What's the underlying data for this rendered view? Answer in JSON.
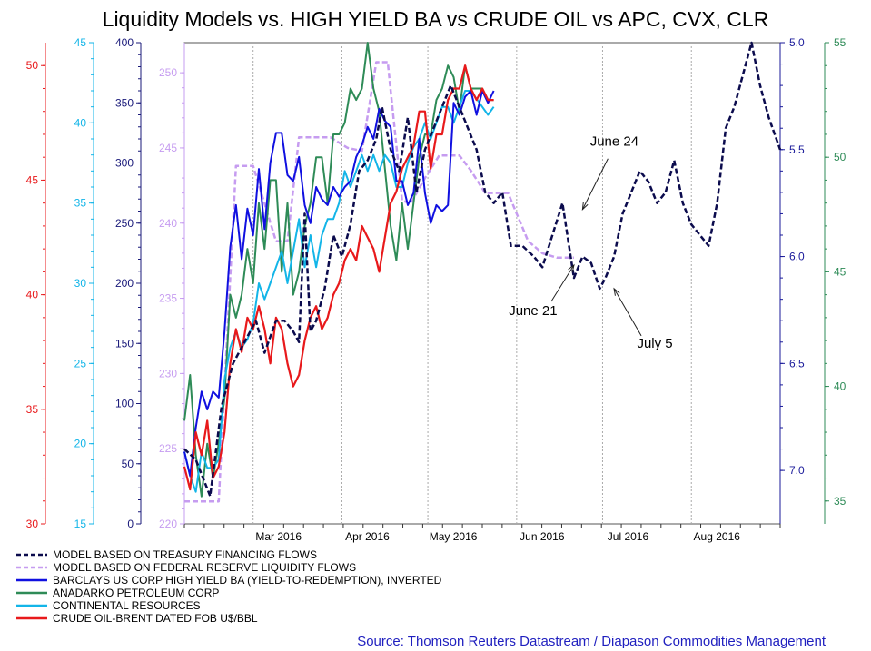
{
  "title": "Liquidity Models vs. HIGH YIELD BA vs CRUDE OIL vs APC, CVX, CLR",
  "source": "Source: Thomson Reuters Datastream / Diapason Commodities Management",
  "chart_data": {
    "type": "line",
    "x_range": [
      "2016-02-06",
      "2016-09-01"
    ],
    "x_ticks": [
      {
        "label": "Mar 2016",
        "date": "2016-03-01"
      },
      {
        "label": "Apr 2016",
        "date": "2016-04-01"
      },
      {
        "label": "May 2016",
        "date": "2016-05-01"
      },
      {
        "label": "Jun 2016",
        "date": "2016-06-01"
      },
      {
        "label": "Jul 2016",
        "date": "2016-07-01"
      },
      {
        "label": "Aug 2016",
        "date": "2016-08-01"
      }
    ],
    "axes": [
      {
        "id": "oil",
        "side": "left",
        "color": "#e8191b",
        "range": [
          30,
          51
        ],
        "ticks": [
          "30",
          "35",
          "40",
          "45",
          "50"
        ]
      },
      {
        "id": "clr",
        "side": "left",
        "color": "#13b5e8",
        "range": [
          15,
          45
        ],
        "ticks": [
          "15",
          "20",
          "25",
          "30",
          "35",
          "40",
          "45"
        ]
      },
      {
        "id": "hy",
        "side": "left",
        "color": "#1a1a7a",
        "range": [
          0,
          400
        ],
        "ticks": [
          "0",
          "50",
          "100",
          "150",
          "200",
          "250",
          "300",
          "350",
          "400"
        ]
      },
      {
        "id": "fed",
        "side": "left",
        "color": "#c69cf0",
        "range": [
          220,
          252
        ],
        "ticks": [
          "220",
          "225",
          "230",
          "235",
          "240",
          "245",
          "250"
        ]
      },
      {
        "id": "treasury",
        "side": "right",
        "color": "#1a1a9a",
        "range": [
          5.0,
          7.25
        ],
        "inverted": true,
        "ticks": [
          "5.0",
          "5.5",
          "6.0",
          "6.5",
          "7.0"
        ]
      },
      {
        "id": "apc",
        "side": "right",
        "color": "#2e8b57",
        "range": [
          34,
          55
        ],
        "ticks": [
          "35",
          "40",
          "45",
          "50",
          "55"
        ]
      }
    ],
    "series": [
      {
        "name": "MODEL BASED ON TREASURY FINANCING FLOWS",
        "axis": "treasury",
        "color": "#0b0b4d",
        "style": "dashed",
        "width": 2.5,
        "x": [
          "2016-02-06",
          "2016-02-10",
          "2016-02-15",
          "2016-02-19",
          "2016-02-23",
          "2016-02-27",
          "2016-03-02",
          "2016-03-05",
          "2016-03-09",
          "2016-03-12",
          "2016-03-15",
          "2016-03-17",
          "2016-03-19",
          "2016-03-21",
          "2016-03-23",
          "2016-03-26",
          "2016-03-29",
          "2016-04-01",
          "2016-04-04",
          "2016-04-07",
          "2016-04-10",
          "2016-04-13",
          "2016-04-15",
          "2016-04-18",
          "2016-04-21",
          "2016-04-24",
          "2016-04-27",
          "2016-04-30",
          "2016-05-03",
          "2016-05-06",
          "2016-05-09",
          "2016-05-12",
          "2016-05-15",
          "2016-05-18",
          "2016-05-21",
          "2016-05-24",
          "2016-05-27",
          "2016-05-30",
          "2016-06-03",
          "2016-06-07",
          "2016-06-10",
          "2016-06-13",
          "2016-06-17",
          "2016-06-21",
          "2016-06-24",
          "2016-06-27",
          "2016-06-30",
          "2016-07-02",
          "2016-07-05",
          "2016-07-08",
          "2016-07-11",
          "2016-07-14",
          "2016-07-17",
          "2016-07-20",
          "2016-07-23",
          "2016-07-26",
          "2016-07-29",
          "2016-08-01",
          "2016-08-04",
          "2016-08-07",
          "2016-08-10",
          "2016-08-13",
          "2016-08-16",
          "2016-08-19",
          "2016-08-22",
          "2016-08-25",
          "2016-08-28",
          "2016-09-01"
        ],
        "y": [
          6.9,
          6.95,
          7.12,
          6.7,
          6.5,
          6.4,
          6.3,
          6.45,
          6.3,
          6.3,
          6.35,
          6.4,
          5.8,
          6.35,
          6.3,
          6.15,
          5.9,
          6.0,
          5.85,
          5.6,
          5.55,
          5.45,
          5.3,
          5.5,
          5.6,
          5.35,
          5.7,
          5.5,
          5.4,
          5.3,
          5.2,
          5.3,
          5.4,
          5.5,
          5.7,
          5.75,
          5.7,
          5.95,
          5.95,
          6.0,
          6.05,
          5.92,
          5.75,
          6.1,
          6.0,
          6.03,
          6.15,
          6.1,
          6.0,
          5.8,
          5.7,
          5.6,
          5.65,
          5.75,
          5.7,
          5.55,
          5.75,
          5.85,
          5.9,
          5.95,
          5.75,
          5.4,
          5.3,
          5.15,
          5.0,
          5.2,
          5.35,
          5.5
        ]
      },
      {
        "name": "MODEL BASED ON FEDERAL RESERVE LIQUIDITY FLOWS",
        "axis": "fed",
        "color": "#c69cf0",
        "style": "dashed",
        "width": 2.5,
        "x": [
          "2016-02-06",
          "2016-02-18",
          "2016-02-24",
          "2016-03-01",
          "2016-03-09",
          "2016-03-13",
          "2016-03-17",
          "2016-03-22",
          "2016-03-28",
          "2016-04-03",
          "2016-04-08",
          "2016-04-13",
          "2016-04-17",
          "2016-04-22",
          "2016-04-25",
          "2016-04-30",
          "2016-05-05",
          "2016-05-12",
          "2016-05-16",
          "2016-05-21",
          "2016-05-25",
          "2016-05-29",
          "2016-06-05",
          "2016-06-10",
          "2016-06-15",
          "2016-06-21"
        ],
        "y": [
          221.5,
          221.5,
          243.8,
          243.8,
          238.8,
          238.8,
          245.7,
          245.7,
          245.7,
          245,
          244.8,
          250.7,
          250.7,
          241.5,
          241.3,
          243,
          244.5,
          244.5,
          243.5,
          242,
          242,
          242,
          238.8,
          238,
          237.7,
          237.7
        ]
      },
      {
        "name": "BARCLAYS US CORP HIGH YIELD BA (YIELD-TO-REDEMPTION), INVERTED",
        "axis": "hy",
        "color": "#1010e0",
        "style": "solid",
        "width": 2,
        "x": [
          "2016-02-06",
          "2016-02-08",
          "2016-02-10",
          "2016-02-12",
          "2016-02-14",
          "2016-02-16",
          "2016-02-18",
          "2016-02-20",
          "2016-02-22",
          "2016-02-24",
          "2016-02-26",
          "2016-02-28",
          "2016-03-01",
          "2016-03-03",
          "2016-03-05",
          "2016-03-07",
          "2016-03-09",
          "2016-03-11",
          "2016-03-13",
          "2016-03-15",
          "2016-03-17",
          "2016-03-19",
          "2016-03-21",
          "2016-03-23",
          "2016-03-25",
          "2016-03-27",
          "2016-03-29",
          "2016-03-31",
          "2016-04-02",
          "2016-04-04",
          "2016-04-06",
          "2016-04-08",
          "2016-04-10",
          "2016-04-12",
          "2016-04-14",
          "2016-04-16",
          "2016-04-18",
          "2016-04-20",
          "2016-04-22",
          "2016-04-24",
          "2016-04-26",
          "2016-04-28",
          "2016-04-30",
          "2016-05-02",
          "2016-05-04",
          "2016-05-06",
          "2016-05-08",
          "2016-05-10",
          "2016-05-12",
          "2016-05-14",
          "2016-05-16",
          "2016-05-18",
          "2016-05-20",
          "2016-05-22",
          "2016-05-24"
        ],
        "y": [
          60,
          40,
          80,
          110,
          95,
          110,
          105,
          160,
          230,
          265,
          220,
          262,
          240,
          295,
          245,
          300,
          325,
          325,
          290,
          285,
          305,
          265,
          250,
          280,
          270,
          265,
          280,
          272,
          280,
          285,
          305,
          315,
          330,
          320,
          345,
          335,
          330,
          285,
          285,
          265,
          275,
          320,
          275,
          250,
          265,
          260,
          265,
          350,
          340,
          355,
          360,
          340,
          360,
          350,
          360
        ]
      },
      {
        "name": "ANADARKO PETROLEUM CORP",
        "axis": "apc",
        "color": "#2e8b57",
        "style": "solid",
        "width": 2,
        "x": [
          "2016-02-06",
          "2016-02-08",
          "2016-02-10",
          "2016-02-12",
          "2016-02-14",
          "2016-02-16",
          "2016-02-18",
          "2016-02-20",
          "2016-02-22",
          "2016-02-24",
          "2016-02-26",
          "2016-02-28",
          "2016-03-01",
          "2016-03-03",
          "2016-03-05",
          "2016-03-07",
          "2016-03-09",
          "2016-03-11",
          "2016-03-13",
          "2016-03-15",
          "2016-03-17",
          "2016-03-19",
          "2016-03-21",
          "2016-03-23",
          "2016-03-25",
          "2016-03-27",
          "2016-03-29",
          "2016-03-31",
          "2016-04-02",
          "2016-04-04",
          "2016-04-06",
          "2016-04-08",
          "2016-04-10",
          "2016-04-12",
          "2016-04-14",
          "2016-04-16",
          "2016-04-18",
          "2016-04-20",
          "2016-04-22",
          "2016-04-24",
          "2016-04-26",
          "2016-04-28",
          "2016-04-30",
          "2016-05-02",
          "2016-05-04",
          "2016-05-06",
          "2016-05-08",
          "2016-05-10",
          "2016-05-12",
          "2016-05-14",
          "2016-05-16",
          "2016-05-18",
          "2016-05-20",
          "2016-05-22",
          "2016-05-24"
        ],
        "y": [
          38.5,
          40.5,
          37,
          35.2,
          37.5,
          36,
          37.5,
          39.5,
          44,
          43,
          44,
          46,
          44.5,
          48,
          46,
          49,
          49,
          45,
          48,
          44,
          45,
          47,
          48,
          50,
          50,
          48,
          51,
          51,
          51.5,
          53,
          52.5,
          53,
          55,
          53,
          52,
          49.5,
          47,
          45.5,
          48,
          46,
          48,
          50,
          51,
          51,
          52.5,
          53,
          54,
          53.5,
          52,
          54,
          53,
          53,
          53,
          52.5,
          52.5
        ]
      },
      {
        "name": "CONTINENTAL RESOURCES",
        "axis": "clr",
        "color": "#13b5e8",
        "style": "solid",
        "width": 2,
        "x": [
          "2016-02-06",
          "2016-02-08",
          "2016-02-10",
          "2016-02-12",
          "2016-02-14",
          "2016-02-16",
          "2016-02-18",
          "2016-02-20",
          "2016-02-22",
          "2016-02-24",
          "2016-02-26",
          "2016-02-28",
          "2016-03-01",
          "2016-03-03",
          "2016-03-05",
          "2016-03-07",
          "2016-03-09",
          "2016-03-11",
          "2016-03-13",
          "2016-03-15",
          "2016-03-17",
          "2016-03-19",
          "2016-03-21",
          "2016-03-23",
          "2016-03-25",
          "2016-03-27",
          "2016-03-29",
          "2016-03-31",
          "2016-04-02",
          "2016-04-04",
          "2016-04-06",
          "2016-04-08",
          "2016-04-10",
          "2016-04-12",
          "2016-04-14",
          "2016-04-16",
          "2016-04-18",
          "2016-04-20",
          "2016-04-22",
          "2016-04-24",
          "2016-04-26",
          "2016-04-28",
          "2016-04-30",
          "2016-05-02",
          "2016-05-04",
          "2016-05-06",
          "2016-05-08",
          "2016-05-10",
          "2016-05-12",
          "2016-05-14",
          "2016-05-16",
          "2016-05-18",
          "2016-05-20",
          "2016-05-22",
          "2016-05-24"
        ],
        "y": [
          19.5,
          18,
          17,
          19.5,
          18.5,
          18.5,
          19,
          24,
          26,
          27,
          26,
          26.5,
          27.5,
          30,
          29,
          30,
          31,
          32,
          30,
          32,
          34,
          31,
          33,
          31,
          33,
          34,
          34,
          35,
          37,
          36,
          37,
          38,
          37,
          38,
          37,
          38,
          37.5,
          36,
          36,
          37.5,
          38.5,
          39,
          40,
          39,
          40,
          41,
          41,
          40,
          41,
          42,
          42,
          41.5,
          41,
          40.5,
          41
        ]
      },
      {
        "name": "CRUDE OIL-BRENT DATED FOB U$/BBL",
        "axis": "oil",
        "color": "#e8191b",
        "style": "solid",
        "width": 2.2,
        "x": [
          "2016-02-06",
          "2016-02-08",
          "2016-02-10",
          "2016-02-12",
          "2016-02-14",
          "2016-02-16",
          "2016-02-18",
          "2016-02-20",
          "2016-02-22",
          "2016-02-24",
          "2016-02-26",
          "2016-02-28",
          "2016-03-01",
          "2016-03-03",
          "2016-03-05",
          "2016-03-07",
          "2016-03-09",
          "2016-03-11",
          "2016-03-13",
          "2016-03-15",
          "2016-03-17",
          "2016-03-19",
          "2016-03-21",
          "2016-03-23",
          "2016-03-25",
          "2016-03-27",
          "2016-03-29",
          "2016-03-31",
          "2016-04-02",
          "2016-04-04",
          "2016-04-06",
          "2016-04-08",
          "2016-04-10",
          "2016-04-12",
          "2016-04-14",
          "2016-04-16",
          "2016-04-18",
          "2016-04-20",
          "2016-04-22",
          "2016-04-24",
          "2016-04-26",
          "2016-04-28",
          "2016-04-30",
          "2016-05-02",
          "2016-05-04",
          "2016-05-06",
          "2016-05-08",
          "2016-05-10",
          "2016-05-12",
          "2016-05-14",
          "2016-05-16",
          "2016-05-18",
          "2016-05-20",
          "2016-05-22",
          "2016-05-24"
        ],
        "y": [
          32.5,
          31.5,
          34,
          33,
          34.5,
          32,
          32.5,
          34,
          37,
          38.5,
          37.5,
          39,
          38.5,
          39.5,
          38.5,
          37,
          39,
          38.5,
          37,
          36,
          36.5,
          38,
          39,
          39.5,
          38.5,
          39,
          40,
          40.5,
          41.5,
          42,
          41.5,
          43,
          42.5,
          42,
          41,
          42.5,
          44,
          44.5,
          45.5,
          46,
          46.5,
          48,
          48,
          45.5,
          47,
          47,
          48.5,
          49,
          49,
          50,
          49,
          48.5,
          49,
          48.5,
          48.5
        ]
      }
    ],
    "annotations": [
      {
        "text": "June 24",
        "date": "2016-06-24",
        "value": 5.78
      },
      {
        "text": "June 21",
        "date": "2016-06-21",
        "value": 6.04
      },
      {
        "text": "July 5",
        "date": "2016-07-05",
        "value": 6.15
      }
    ]
  }
}
